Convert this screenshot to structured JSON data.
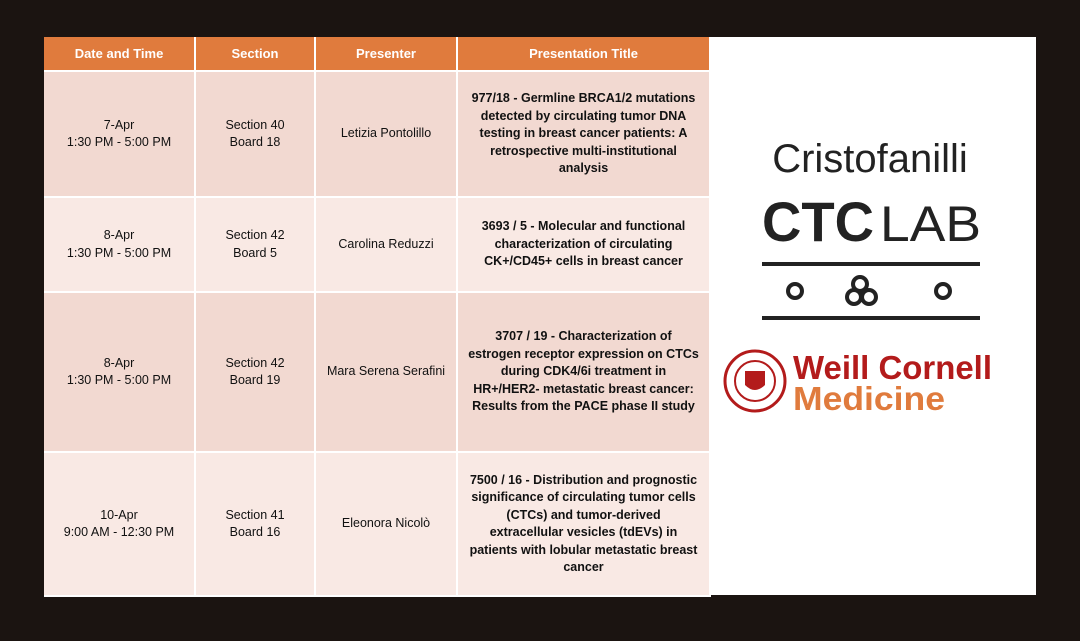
{
  "table": {
    "header": [
      "Date and Time",
      "Section",
      "Presenter",
      "Presentation Title"
    ],
    "rows": [
      {
        "date": "7-Apr",
        "time": "1:30 PM - 5:00 PM",
        "section": "Section 40",
        "board": "Board 18",
        "presenter": "Letizia Pontolillo",
        "title": "977/18 - Germline BRCA1/2 mutations detected by circulating tumor DNA testing in breast cancer patients: A retrospective multi-institutional analysis"
      },
      {
        "date": "8-Apr",
        "time": "1:30 PM - 5:00 PM",
        "section": "Section 42",
        "board": "Board 5",
        "presenter": "Carolina Reduzzi",
        "title": "3693 / 5 - Molecular and functional characterization of circulating CK+/CD45+ cells in breast cancer"
      },
      {
        "date": "8-Apr",
        "time": "1:30 PM - 5:00 PM",
        "section": "Section 42",
        "board": "Board 19",
        "presenter": "Mara Serena Serafini",
        "title": "3707 / 19  - Characterization of estrogen receptor expression on CTCs during CDK4/6i treatment in HR+/HER2- metastatic breast cancer: Results from the PACE phase II study"
      },
      {
        "date": "10-Apr",
        "time": "9:00 AM - 12:30 PM",
        "section": "Section 41",
        "board": "Board 16",
        "presenter": "Eleonora Nicolò",
        "title": "7500 / 16 - Distribution and prognostic significance of circulating tumor cells (CTCs) and tumor-derived extracellular vesicles (tdEVs) in patients with lobular metastatic breast cancer"
      }
    ]
  },
  "logo": {
    "name": "Cristofanilli",
    "ctc": "CTC",
    "lab": "LAB"
  },
  "institution": {
    "line1": "Weill Cornell",
    "line2": "Medicine"
  }
}
